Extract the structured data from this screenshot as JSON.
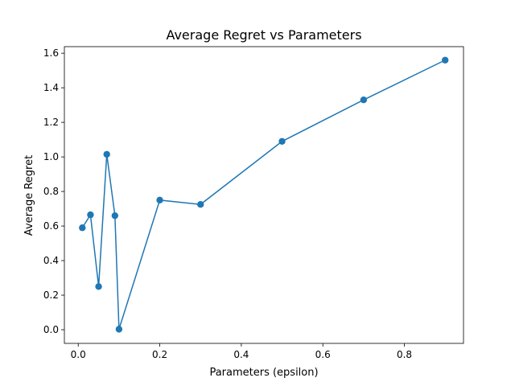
{
  "chart_data": {
    "type": "line",
    "title": "Average Regret vs Parameters",
    "xlabel": "Parameters (epsilon)",
    "ylabel": "Average Regret",
    "xlim": [
      -0.034,
      0.945
    ],
    "ylim": [
      -0.079,
      1.638
    ],
    "xticks": [
      0.0,
      0.2,
      0.4,
      0.6,
      0.8
    ],
    "xtick_labels": [
      "0.0",
      "0.2",
      "0.4",
      "0.6",
      "0.8"
    ],
    "yticks": [
      0.0,
      0.2,
      0.4,
      0.6,
      0.8,
      1.0,
      1.2,
      1.4,
      1.6
    ],
    "ytick_labels": [
      "0.0",
      "0.2",
      "0.4",
      "0.6",
      "0.8",
      "1.0",
      "1.2",
      "1.4",
      "1.6"
    ],
    "grid": false,
    "marker": "circle",
    "color": "#1f77b4",
    "series": [
      {
        "x": [
          0.01,
          0.03,
          0.05,
          0.07,
          0.09,
          0.1,
          0.2,
          0.3,
          0.5,
          0.7,
          0.9
        ],
        "y": [
          0.59,
          0.665,
          0.25,
          1.015,
          0.66,
          0.003,
          0.75,
          0.725,
          1.09,
          1.33,
          1.56
        ]
      }
    ]
  }
}
